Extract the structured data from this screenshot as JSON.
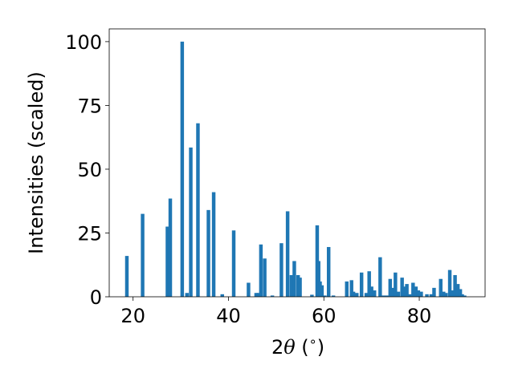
{
  "chart_data": {
    "type": "bar",
    "xlabel_pre": "2",
    "xlabel_theta": "θ",
    "xlabel_post": " (",
    "xlabel_deg": "∘",
    "xlabel_close": ")",
    "ylabel": "Intensities (scaled)",
    "xlim": [
      15,
      93.8
    ],
    "ylim": [
      0,
      105
    ],
    "xticks": [
      20,
      40,
      60,
      80
    ],
    "yticks": [
      0,
      25,
      50,
      75,
      100
    ],
    "bar_color": "#1f77b4",
    "bar_width": 0.75,
    "grid": false,
    "x": [
      18.7,
      22.0,
      27.2,
      27.8,
      30.3,
      31.3,
      32.1,
      33.6,
      35.8,
      36.9,
      38.7,
      41.1,
      44.2,
      45.8,
      46.3,
      46.8,
      47.6,
      49.2,
      51.1,
      52.4,
      53.2,
      53.8,
      54.6,
      55.0,
      57.5,
      58.6,
      58.9,
      59.2,
      59.6,
      60.2,
      61.0,
      62.0,
      64.8,
      65.8,
      66.2,
      66.9,
      67.9,
      68.9,
      69.5,
      70.0,
      70.6,
      71.8,
      72.5,
      73.2,
      73.9,
      74.4,
      75.0,
      75.6,
      76.4,
      76.9,
      77.4,
      78.0,
      78.7,
      79.3,
      79.8,
      80.4,
      81.6,
      82.5,
      83.1,
      84.5,
      85.1,
      85.6,
      86.4,
      86.9,
      87.5,
      88.1,
      88.6,
      89.0,
      89.5
    ],
    "values": [
      16,
      32.5,
      27.5,
      38.5,
      100,
      1.5,
      58.5,
      68,
      34,
      41,
      1,
      26,
      5.5,
      1.5,
      1.5,
      20.5,
      15,
      0.5,
      21,
      33.5,
      8.5,
      14,
      8.5,
      7.5,
      0.8,
      28,
      14,
      6,
      4.5,
      0.5,
      19.5,
      0.5,
      6,
      6.5,
      2,
      1.5,
      9.5,
      1.5,
      10,
      4,
      2.5,
      15.5,
      0.5,
      0.5,
      7,
      3.5,
      9.5,
      2,
      7.5,
      4,
      5,
      1,
      5.5,
      4,
      2.5,
      2,
      1,
      1,
      3.5,
      7,
      2,
      1.5,
      10.5,
      2.5,
      8.5,
      5,
      3,
      1,
      0.5
    ]
  }
}
